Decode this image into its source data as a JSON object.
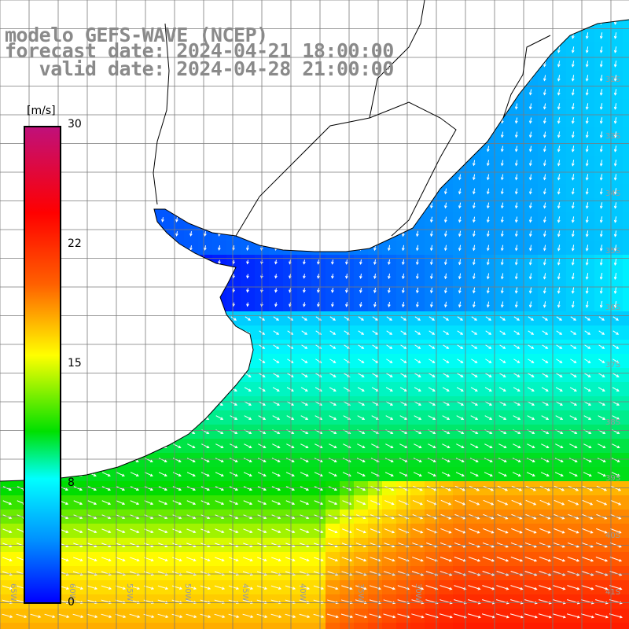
{
  "header": {
    "line1": "modelo GEFS-WAVE (NCEP)",
    "line2": "forecast date: 2024-04-21 18:00:00",
    "line3": "   valid date: 2024-04-28 21:00:00"
  },
  "colorbar": {
    "unit": "[m/s]",
    "min": 0,
    "max": 30,
    "ticks": [
      "30",
      "22",
      "15",
      "8",
      "0"
    ],
    "tick_values": [
      30,
      22,
      15,
      8,
      0
    ],
    "stops": [
      "#0000ff",
      "#0090ff",
      "#00ffff",
      "#00e000",
      "#ffff00",
      "#ff6000",
      "#ff0000",
      "#c0107a"
    ]
  },
  "map": {
    "lon_labels": [
      "65W",
      "60W",
      "55W",
      "50W",
      "45W",
      "40W",
      "35W",
      "30W"
    ],
    "lat_labels": [
      "32S",
      "33S",
      "34S",
      "35S",
      "36S",
      "37S",
      "38S",
      "39S",
      "40S",
      "41S"
    ],
    "land_color": "#ffffff",
    "grid_color": "#7a7a7a",
    "coast_color": "#000000"
  }
}
